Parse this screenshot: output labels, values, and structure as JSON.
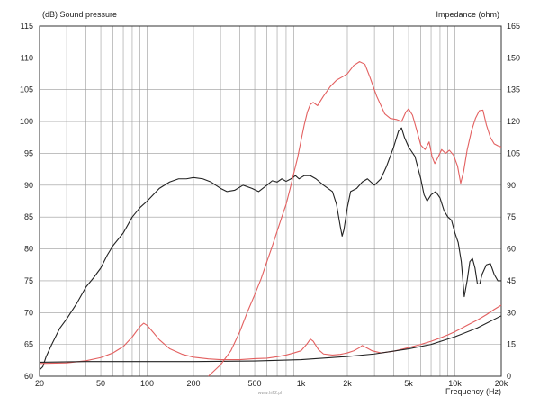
{
  "chart_data": {
    "type": "line",
    "left_axis_title": "(dB)  Sound pressure",
    "right_axis_title": "Impedance  (ohm)",
    "xlabel": "Frequency  (Hz)",
    "x_scale": "log",
    "xlim": [
      20,
      20000
    ],
    "ylim_left": [
      60,
      115
    ],
    "ylim_right": [
      0,
      165
    ],
    "grid": true,
    "x_tick_labels": [
      {
        "value": 20,
        "label": "20"
      },
      {
        "value": 50,
        "label": "50"
      },
      {
        "value": 100,
        "label": "100"
      },
      {
        "value": 200,
        "label": "200"
      },
      {
        "value": 500,
        "label": "500"
      },
      {
        "value": 1000,
        "label": "1k"
      },
      {
        "value": 2000,
        "label": "2k"
      },
      {
        "value": 5000,
        "label": "5k"
      },
      {
        "value": 10000,
        "label": "10k"
      },
      {
        "value": 20000,
        "label": "20k"
      }
    ],
    "y_left_ticks": [
      60,
      65,
      70,
      75,
      80,
      85,
      90,
      95,
      100,
      105,
      110,
      115
    ],
    "y_right_ticks": [
      0,
      15,
      30,
      45,
      60,
      75,
      90,
      105,
      120,
      135,
      150,
      165
    ],
    "series": [
      {
        "axis": "left",
        "color": "#222222",
        "points": [
          [
            20,
            61
          ],
          [
            21,
            61.5
          ],
          [
            22,
            63
          ],
          [
            24,
            65
          ],
          [
            27,
            67.5
          ],
          [
            30,
            69
          ],
          [
            35,
            71.5
          ],
          [
            40,
            74
          ],
          [
            45,
            75.5
          ],
          [
            50,
            77
          ],
          [
            55,
            79
          ],
          [
            60,
            80.5
          ],
          [
            70,
            82.5
          ],
          [
            80,
            85
          ],
          [
            90,
            86.5
          ],
          [
            100,
            87.5
          ],
          [
            120,
            89.5
          ],
          [
            140,
            90.5
          ],
          [
            160,
            91
          ],
          [
            180,
            91
          ],
          [
            200,
            91.2
          ],
          [
            230,
            91
          ],
          [
            260,
            90.5
          ],
          [
            300,
            89.5
          ],
          [
            330,
            89
          ],
          [
            370,
            89.2
          ],
          [
            420,
            90
          ],
          [
            480,
            89.5
          ],
          [
            530,
            89
          ],
          [
            600,
            90
          ],
          [
            650,
            90.7
          ],
          [
            700,
            90.5
          ],
          [
            750,
            91
          ],
          [
            800,
            90.6
          ],
          [
            860,
            91
          ],
          [
            920,
            91.5
          ],
          [
            970,
            91
          ],
          [
            1050,
            91.5
          ],
          [
            1150,
            91.5
          ],
          [
            1250,
            91
          ],
          [
            1400,
            90
          ],
          [
            1600,
            89
          ],
          [
            1700,
            87
          ],
          [
            1800,
            83.5
          ],
          [
            1850,
            82
          ],
          [
            1900,
            83
          ],
          [
            2000,
            86.5
          ],
          [
            2100,
            89
          ],
          [
            2300,
            89.5
          ],
          [
            2500,
            90.5
          ],
          [
            2700,
            91
          ],
          [
            3000,
            90
          ],
          [
            3300,
            91
          ],
          [
            3600,
            93
          ],
          [
            4000,
            96
          ],
          [
            4300,
            98.5
          ],
          [
            4500,
            99
          ],
          [
            4700,
            97.5
          ],
          [
            5000,
            96
          ],
          [
            5500,
            94.5
          ],
          [
            6000,
            91
          ],
          [
            6300,
            88.5
          ],
          [
            6600,
            87.5
          ],
          [
            7000,
            88.5
          ],
          [
            7500,
            89
          ],
          [
            8000,
            88
          ],
          [
            8500,
            86
          ],
          [
            9000,
            85
          ],
          [
            9500,
            84.5
          ],
          [
            10000,
            82.5
          ],
          [
            10500,
            81
          ],
          [
            11000,
            78
          ],
          [
            11500,
            72.5
          ],
          [
            12000,
            75
          ],
          [
            12500,
            78
          ],
          [
            13000,
            78.5
          ],
          [
            13500,
            77
          ],
          [
            14000,
            74.5
          ],
          [
            14500,
            74.5
          ],
          [
            15000,
            76
          ],
          [
            16000,
            77.5
          ],
          [
            17000,
            77.7
          ],
          [
            18000,
            76
          ],
          [
            19000,
            75
          ],
          [
            20000,
            75
          ]
        ]
      },
      {
        "axis": "right",
        "color": "#e36060",
        "points": [
          [
            20,
            6
          ],
          [
            30,
            6.3
          ],
          [
            40,
            7.3
          ],
          [
            50,
            8.8
          ],
          [
            60,
            11
          ],
          [
            70,
            14
          ],
          [
            80,
            18.5
          ],
          [
            90,
            23.5
          ],
          [
            95,
            25
          ],
          [
            100,
            24
          ],
          [
            110,
            20.5
          ],
          [
            120,
            17.2
          ],
          [
            140,
            13
          ],
          [
            170,
            10.3
          ],
          [
            200,
            9
          ],
          [
            250,
            8.2
          ],
          [
            300,
            7.8
          ],
          [
            400,
            7.8
          ],
          [
            500,
            8.3
          ],
          [
            600,
            8.5
          ],
          [
            700,
            9.2
          ],
          [
            800,
            10
          ],
          [
            900,
            11
          ],
          [
            1000,
            12
          ],
          [
            1100,
            15.5
          ],
          [
            1150,
            17.5
          ],
          [
            1200,
            16.5
          ],
          [
            1300,
            12.5
          ],
          [
            1400,
            10.5
          ],
          [
            1600,
            10
          ],
          [
            1800,
            10.3
          ],
          [
            2000,
            11
          ],
          [
            2200,
            12
          ],
          [
            2400,
            13.5
          ],
          [
            2500,
            14.5
          ],
          [
            2650,
            13.5
          ],
          [
            2900,
            12
          ],
          [
            3300,
            11
          ],
          [
            4000,
            11.8
          ],
          [
            5000,
            13.5
          ],
          [
            6000,
            15
          ],
          [
            7000,
            16.5
          ],
          [
            8000,
            18
          ],
          [
            9000,
            19.5
          ],
          [
            10000,
            21
          ],
          [
            12000,
            24
          ],
          [
            14000,
            26.5
          ],
          [
            16000,
            29
          ],
          [
            18000,
            31.5
          ],
          [
            20000,
            33.5
          ]
        ]
      },
      {
        "axis": "left",
        "color": "#222222",
        "points": [
          [
            20,
            62.2
          ],
          [
            40,
            62.3
          ],
          [
            80,
            62.3
          ],
          [
            200,
            62.3
          ],
          [
            500,
            62.4
          ],
          [
            1000,
            62.6
          ],
          [
            2000,
            63.1
          ],
          [
            3000,
            63.5
          ],
          [
            5000,
            64.3
          ],
          [
            7000,
            65
          ],
          [
            10000,
            66.2
          ],
          [
            14000,
            67.6
          ],
          [
            20000,
            69.5
          ]
        ]
      },
      {
        "axis": "left",
        "color": "#e36060",
        "points": [
          [
            250,
            60
          ],
          [
            300,
            61.8
          ],
          [
            350,
            64
          ],
          [
            400,
            67
          ],
          [
            450,
            70.2
          ],
          [
            500,
            72.8
          ],
          [
            550,
            75.3
          ],
          [
            600,
            78
          ],
          [
            650,
            80.4
          ],
          [
            700,
            82.8
          ],
          [
            750,
            85
          ],
          [
            800,
            87
          ],
          [
            850,
            89.5
          ],
          [
            900,
            92
          ],
          [
            950,
            94.3
          ],
          [
            1000,
            97
          ],
          [
            1050,
            99.5
          ],
          [
            1100,
            101.5
          ],
          [
            1150,
            102.7
          ],
          [
            1200,
            103
          ],
          [
            1280,
            102.5
          ],
          [
            1400,
            104
          ],
          [
            1550,
            105.5
          ],
          [
            1700,
            106.5
          ],
          [
            1850,
            107
          ],
          [
            2000,
            107.5
          ],
          [
            2200,
            108.8
          ],
          [
            2400,
            109.4
          ],
          [
            2600,
            109
          ],
          [
            2800,
            107
          ],
          [
            3100,
            104
          ],
          [
            3500,
            101.2
          ],
          [
            3800,
            100.5
          ],
          [
            4200,
            100.3
          ],
          [
            4500,
            100
          ],
          [
            4800,
            101.5
          ],
          [
            5000,
            102
          ],
          [
            5300,
            101
          ],
          [
            5700,
            98.3
          ],
          [
            6000,
            96.3
          ],
          [
            6400,
            95.6
          ],
          [
            6800,
            96.8
          ],
          [
            7100,
            94.5
          ],
          [
            7400,
            93.4
          ],
          [
            7800,
            94.5
          ],
          [
            8200,
            95.6
          ],
          [
            8700,
            95
          ],
          [
            9200,
            95.5
          ],
          [
            9800,
            94.7
          ],
          [
            10400,
            93
          ],
          [
            10900,
            90.3
          ],
          [
            11400,
            92.2
          ],
          [
            12000,
            95.5
          ],
          [
            12800,
            98.5
          ],
          [
            13600,
            100.5
          ],
          [
            14400,
            101.7
          ],
          [
            15200,
            101.8
          ],
          [
            16000,
            99.5
          ],
          [
            17000,
            97.5
          ],
          [
            18000,
            96.5
          ],
          [
            19000,
            96.2
          ],
          [
            20000,
            96
          ]
        ]
      }
    ]
  },
  "watermark": "www.hifi2.pl"
}
